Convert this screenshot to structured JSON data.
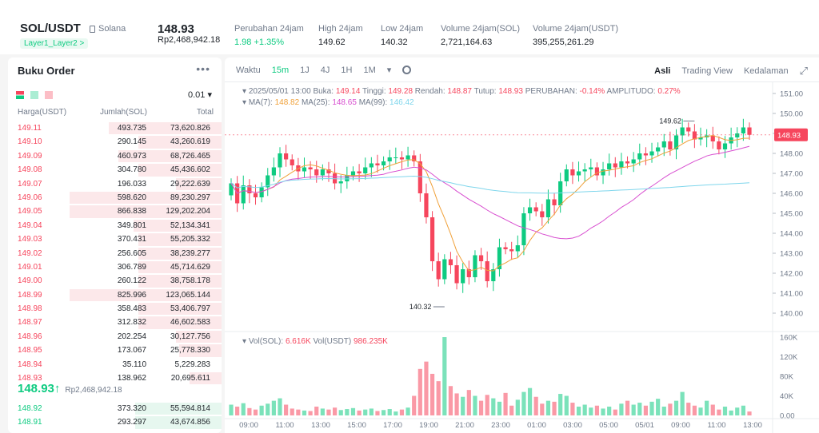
{
  "header": {
    "pair": "SOL/USDT",
    "chain": "Solana",
    "tag": "Layer1_Layer2 >",
    "price": "148.93",
    "price_idr": "Rp2,468,942.18",
    "stats": [
      {
        "label": "Perubahan 24jam",
        "value": "1.98 +1.35%",
        "color": "#0ecb81"
      },
      {
        "label": "High 24jam",
        "value": "149.62",
        "color": "#1e2329"
      },
      {
        "label": "Low 24jam",
        "value": "140.32",
        "color": "#1e2329"
      },
      {
        "label": "Volume 24jam(SOL)",
        "value": "2,721,164.63",
        "color": "#1e2329"
      },
      {
        "label": "Volume 24jam(USDT)",
        "value": "395,255,261.29",
        "color": "#1e2329"
      }
    ]
  },
  "orderbook": {
    "title": "Buku Order",
    "more": "•••",
    "step": "0.01 ▾",
    "columns": [
      "Harga(USDT)",
      "Jumlah(SOL)",
      "Total"
    ],
    "asks": [
      {
        "price": "149.11",
        "qty": "493.735",
        "total": "73,620.826",
        "depth": 0.74
      },
      {
        "price": "149.10",
        "qty": "290.145",
        "total": "43,260.619",
        "depth": 0.55
      },
      {
        "price": "149.09",
        "qty": "460.973",
        "total": "68,726.465",
        "depth": 0.68
      },
      {
        "price": "149.08",
        "qty": "304.780",
        "total": "45,436.602",
        "depth": 0.55
      },
      {
        "price": "149.07",
        "qty": "196.033",
        "total": "29,222.639",
        "depth": 0.3
      },
      {
        "price": "149.06",
        "qty": "598.620",
        "total": "89,230.297",
        "depth": 1.0
      },
      {
        "price": "149.05",
        "qty": "866.838",
        "total": "129,202.204",
        "depth": 1.0
      },
      {
        "price": "149.04",
        "qty": "349.801",
        "total": "52,134.341",
        "depth": 0.58
      },
      {
        "price": "149.03",
        "qty": "370.431",
        "total": "55,205.332",
        "depth": 0.55
      },
      {
        "price": "149.02",
        "qty": "256.605",
        "total": "38,239.277",
        "depth": 0.55
      },
      {
        "price": "149.01",
        "qty": "306.789",
        "total": "45,714.629",
        "depth": 0.55
      },
      {
        "price": "149.00",
        "qty": "260.122",
        "total": "38,758.178",
        "depth": 0.55
      },
      {
        "price": "148.99",
        "qty": "825.996",
        "total": "123,065.144",
        "depth": 1.0
      },
      {
        "price": "148.98",
        "qty": "358.483",
        "total": "53,406.797",
        "depth": 0.55
      },
      {
        "price": "148.97",
        "qty": "312.832",
        "total": "46,602.583",
        "depth": 0.55
      },
      {
        "price": "148.96",
        "qty": "202.254",
        "total": "30,127.756",
        "depth": 0.3
      },
      {
        "price": "148.95",
        "qty": "173.067",
        "total": "25,778.330",
        "depth": 0.28
      },
      {
        "price": "148.94",
        "qty": "35.110",
        "total": "5,229.283",
        "depth": 0.0
      },
      {
        "price": "148.93",
        "qty": "138.962",
        "total": "20,695.611",
        "depth": 0.21
      }
    ],
    "mid_price": "148.93↑",
    "mid_sub": "Rp2,468,942.18",
    "bids": [
      {
        "price": "148.92",
        "qty": "373.320",
        "total": "55,594.814",
        "depth": 0.57
      },
      {
        "price": "148.91",
        "qty": "293.297",
        "total": "43,674.856",
        "depth": 0.57
      }
    ]
  },
  "chart": {
    "toolbar": [
      "Waktu",
      "15m",
      "1J",
      "4J",
      "1H",
      "1M",
      "▾"
    ],
    "active_interval": "15m",
    "views": [
      "Asli",
      "Trading View",
      "Kedalaman"
    ],
    "active_view": "Asli",
    "info_line": [
      {
        "text": "2025/05/01 13:00",
        "red": false
      },
      {
        "text": "Buka:",
        "red": false
      },
      {
        "text": "149.14",
        "red": true
      },
      {
        "text": "Tinggi:",
        "red": false
      },
      {
        "text": "149.28",
        "red": true
      },
      {
        "text": "Rendah:",
        "red": false
      },
      {
        "text": "148.87",
        "red": true
      },
      {
        "text": "Tutup:",
        "red": false
      },
      {
        "text": "148.93",
        "red": true
      },
      {
        "text": "PERUBAHAN:",
        "red": false
      },
      {
        "text": "-0.14%",
        "red": true
      },
      {
        "text": "AMPLITUDO:",
        "red": false
      },
      {
        "text": "0.27%",
        "red": true
      }
    ],
    "ma_line": [
      {
        "label": "MA(7):",
        "value": "148.82",
        "color": "#f0a13a"
      },
      {
        "label": "MA(25):",
        "value": "148.65",
        "color": "#d84fd0"
      },
      {
        "label": "MA(99):",
        "value": "146.42",
        "color": "#7fd6ec"
      }
    ],
    "vol_line": [
      {
        "label": "Vol(SOL):",
        "value": "6.616K"
      },
      {
        "label": "Vol(USDT)",
        "value": "986.235K"
      }
    ],
    "current_price_tag": "148.93",
    "high_marker": "149.62",
    "low_marker": "140.32",
    "colors": {
      "up": "#0ecb81",
      "down": "#f6465d"
    }
  },
  "chart_data": {
    "type": "candlestick",
    "y_ticks": [
      "151.00",
      "150.00",
      "149.00",
      "148.00",
      "147.00",
      "146.00",
      "145.00",
      "144.00",
      "143.00",
      "142.00",
      "141.00",
      "140.00"
    ],
    "ylim": [
      139.6,
      151.2
    ],
    "vol_ticks": [
      "160K",
      "120K",
      "80K",
      "40K",
      "0.00"
    ],
    "vol_ylim": [
      0,
      160
    ],
    "x_ticks": [
      "09:00",
      "11:00",
      "13:00",
      "15:00",
      "17:00",
      "19:00",
      "21:00",
      "23:00",
      "01:00",
      "03:00",
      "05:00",
      "05/01",
      "09:00",
      "11:00",
      "13:00"
    ],
    "close": [
      146.5,
      145.5,
      146.4,
      146.0,
      145.8,
      146.3,
      146.9,
      147.3,
      148.0,
      147.7,
      147.4,
      147.1,
      147.3,
      147.2,
      146.9,
      147.2,
      147.0,
      146.5,
      146.6,
      146.9,
      147.1,
      147.0,
      147.3,
      147.5,
      147.4,
      147.6,
      147.8,
      147.8,
      147.7,
      147.9,
      147.6,
      146.0,
      144.8,
      142.6,
      141.7,
      142.7,
      142.4,
      141.5,
      142.2,
      141.8,
      142.9,
      142.6,
      141.6,
      142.2,
      143.3,
      143.2,
      143.1,
      143.4,
      145.0,
      145.3,
      145.1,
      144.8,
      145.7,
      145.4,
      146.6,
      147.2,
      146.9,
      147.1,
      147.2,
      147.3,
      146.9,
      147.2,
      147.5,
      147.3,
      147.6,
      147.5,
      147.7,
      148.0,
      147.9,
      148.1,
      148.3,
      148.6,
      148.2,
      148.9,
      149.3,
      149.1,
      148.7,
      148.8,
      148.9,
      148.6,
      148.2,
      148.5,
      148.8,
      149.0,
      149.3,
      148.93
    ],
    "volume_k": [
      22,
      18,
      25,
      15,
      12,
      20,
      24,
      30,
      35,
      22,
      14,
      12,
      10,
      9,
      18,
      14,
      12,
      16,
      11,
      13,
      15,
      10,
      12,
      14,
      9,
      11,
      13,
      8,
      12,
      16,
      40,
      95,
      110,
      85,
      70,
      160,
      60,
      45,
      38,
      52,
      40,
      30,
      42,
      35,
      28,
      46,
      20,
      32,
      48,
      56,
      38,
      24,
      30,
      28,
      44,
      40,
      26,
      18,
      22,
      16,
      20,
      14,
      18,
      12,
      24,
      30,
      22,
      26,
      20,
      28,
      34,
      18,
      24,
      30,
      48,
      26,
      20,
      16,
      30,
      22,
      12,
      18,
      10,
      16,
      20,
      8
    ]
  }
}
